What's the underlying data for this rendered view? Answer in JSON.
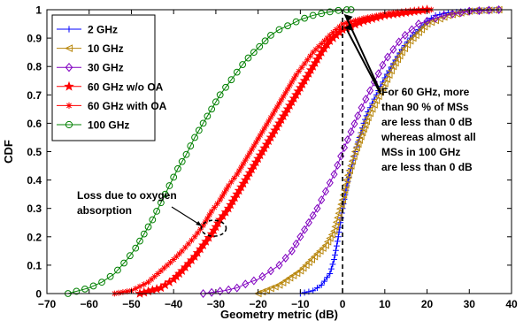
{
  "chart_data": {
    "type": "line",
    "xlabel": "Geometry metric (dB)",
    "ylabel": "CDF",
    "xlim": [
      -70,
      40
    ],
    "ylim": [
      0,
      1
    ],
    "xticks": [
      -70,
      -60,
      -50,
      -40,
      -30,
      -20,
      -10,
      0,
      10,
      20,
      30,
      40
    ],
    "yticks": [
      0,
      0.1,
      0.2,
      0.3,
      0.4,
      0.5,
      0.6,
      0.7,
      0.8,
      0.9,
      1
    ],
    "legend_position": "top-left",
    "grid": false,
    "series": [
      {
        "name": "2 GHz",
        "color": "#0000ff",
        "marker": "plus",
        "x": [
          -10,
          -7,
          -5,
          -3,
          -2,
          -1,
          0,
          1,
          2,
          3,
          4,
          5,
          6,
          8,
          10,
          12,
          14,
          16,
          18,
          20,
          22,
          25,
          30,
          37
        ],
        "y": [
          0,
          0.01,
          0.03,
          0.07,
          0.12,
          0.2,
          0.3,
          0.38,
          0.44,
          0.5,
          0.55,
          0.6,
          0.64,
          0.7,
          0.76,
          0.81,
          0.86,
          0.9,
          0.93,
          0.96,
          0.98,
          0.99,
          0.995,
          1
        ]
      },
      {
        "name": "10 GHz",
        "color": "#b8860b",
        "marker": "triangle-left",
        "x": [
          -20,
          -15,
          -10,
          -8,
          -6,
          -4,
          -2,
          0,
          1,
          2,
          3,
          4,
          5,
          6,
          8,
          10,
          12,
          14,
          16,
          18,
          20,
          25,
          30,
          37
        ],
        "y": [
          0,
          0.03,
          0.08,
          0.11,
          0.14,
          0.17,
          0.22,
          0.33,
          0.4,
          0.45,
          0.5,
          0.54,
          0.58,
          0.62,
          0.68,
          0.74,
          0.8,
          0.85,
          0.89,
          0.92,
          0.95,
          0.98,
          0.995,
          1
        ]
      },
      {
        "name": "30 GHz",
        "color": "#8000c0",
        "marker": "diamond",
        "x": [
          -33,
          -28,
          -25,
          -22,
          -20,
          -18,
          -15,
          -12,
          -10,
          -8,
          -6,
          -4,
          -2,
          0,
          2,
          4,
          6,
          8,
          10,
          14,
          18,
          24,
          30,
          37
        ],
        "y": [
          0,
          0.01,
          0.02,
          0.04,
          0.05,
          0.07,
          0.1,
          0.15,
          0.2,
          0.25,
          0.3,
          0.36,
          0.42,
          0.5,
          0.57,
          0.64,
          0.7,
          0.76,
          0.82,
          0.9,
          0.95,
          0.98,
          0.995,
          1
        ]
      },
      {
        "name": "60 GHz w/o OA",
        "color": "#ff0000",
        "marker": "star",
        "x": [
          -48,
          -43,
          -40,
          -38,
          -35,
          -33,
          -31,
          -29,
          -27,
          -25,
          -23,
          -21,
          -19,
          -17,
          -15,
          -13,
          -11,
          -9,
          -7,
          -5,
          -3,
          0,
          5,
          10,
          15,
          20
        ],
        "y": [
          0,
          0.02,
          0.05,
          0.08,
          0.13,
          0.17,
          0.21,
          0.26,
          0.3,
          0.35,
          0.4,
          0.45,
          0.5,
          0.55,
          0.6,
          0.65,
          0.7,
          0.75,
          0.8,
          0.85,
          0.89,
          0.93,
          0.96,
          0.98,
          0.99,
          1
        ]
      },
      {
        "name": "60 GHz with OA",
        "color": "#ff0000",
        "marker": "asterisk",
        "x": [
          -54,
          -50,
          -46,
          -43,
          -40,
          -38,
          -35,
          -33,
          -31,
          -29,
          -27,
          -25,
          -23,
          -21,
          -19,
          -17,
          -15,
          -13,
          -11,
          -9,
          -7,
          -5,
          -3,
          0,
          5,
          10,
          15,
          21
        ],
        "y": [
          0,
          0.01,
          0.04,
          0.08,
          0.12,
          0.15,
          0.2,
          0.24,
          0.29,
          0.33,
          0.38,
          0.42,
          0.47,
          0.52,
          0.57,
          0.62,
          0.67,
          0.72,
          0.77,
          0.81,
          0.85,
          0.88,
          0.91,
          0.95,
          0.97,
          0.985,
          0.995,
          1
        ]
      },
      {
        "name": "100 GHz",
        "color": "#008000",
        "marker": "circle",
        "x": [
          -65,
          -60,
          -57,
          -54,
          -51,
          -49,
          -47,
          -45,
          -43,
          -41,
          -39,
          -37,
          -35,
          -33,
          -31,
          -29,
          -27,
          -25,
          -23,
          -21,
          -19,
          -17,
          -15,
          -12,
          -10,
          -7,
          -4,
          -2,
          0,
          2
        ],
        "y": [
          0,
          0.02,
          0.04,
          0.07,
          0.12,
          0.16,
          0.21,
          0.26,
          0.32,
          0.38,
          0.44,
          0.49,
          0.55,
          0.6,
          0.65,
          0.7,
          0.74,
          0.78,
          0.82,
          0.85,
          0.88,
          0.91,
          0.93,
          0.95,
          0.965,
          0.98,
          0.99,
          0.995,
          1,
          1
        ]
      }
    ],
    "reference_line": {
      "x": 0,
      "style": "dashed"
    },
    "annotations": [
      {
        "id": "oxygen",
        "lines": [
          "Loss due to oxygen",
          "absorption"
        ]
      },
      {
        "id": "sixty",
        "lines": [
          "For 60 GHz, more",
          "than 90 % of MSs",
          "are less than 0 dB",
          "whereas almost all",
          "MSs in 100 GHz",
          "are less than 0 dB"
        ]
      }
    ]
  }
}
